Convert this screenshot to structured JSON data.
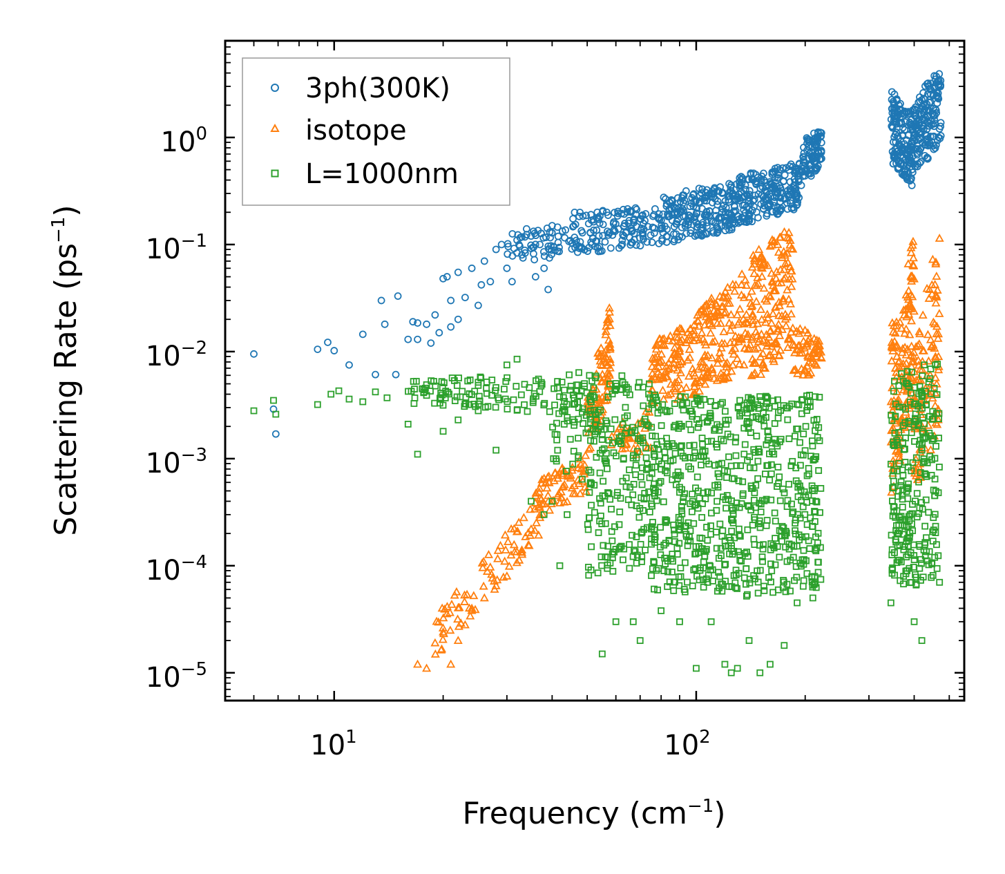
{
  "chart_data": {
    "type": "scatter",
    "xscale": "log",
    "yscale": "log",
    "xlim": [
      5,
      550
    ],
    "ylim": [
      5.5e-06,
      8
    ],
    "xlabel": "Frequency (cm",
    "xlabel_exp": "−1",
    "xlabel_close": ")",
    "ylabel": "Scattering Rate (ps",
    "ylabel_exp": "−1",
    "ylabel_close": ")",
    "x_ticks": [
      {
        "value": 10,
        "base": "10",
        "exp": "1"
      },
      {
        "value": 100,
        "base": "10",
        "exp": "2"
      }
    ],
    "y_ticks": [
      {
        "value": 1,
        "base": "10",
        "exp": "0"
      },
      {
        "value": 0.1,
        "base": "10",
        "exp": "−1"
      },
      {
        "value": 0.01,
        "base": "10",
        "exp": "−2"
      },
      {
        "value": 0.001,
        "base": "10",
        "exp": "−3"
      },
      {
        "value": 0.0001,
        "base": "10",
        "exp": "−4"
      },
      {
        "value": 1e-05,
        "base": "10",
        "exp": "−5"
      }
    ],
    "legend_position": "top-left",
    "series": [
      {
        "name": "3ph(300K)",
        "marker": "circle",
        "color": "#1f77b4",
        "points": [
          [
            6,
            0.0095
          ],
          [
            6.8,
            0.0029
          ],
          [
            6.9,
            0.0017
          ],
          [
            9,
            0.0105
          ],
          [
            9.6,
            0.0122
          ],
          [
            10,
            0.0102
          ],
          [
            11,
            0.0075
          ],
          [
            12,
            0.0145
          ],
          [
            13,
            0.0061
          ],
          [
            13.5,
            0.03
          ],
          [
            13.8,
            0.018
          ],
          [
            14.8,
            0.0061
          ],
          [
            15,
            0.033
          ],
          [
            16,
            0.013
          ],
          [
            16.5,
            0.019
          ],
          [
            17,
            0.0185
          ],
          [
            17,
            0.013
          ],
          [
            18,
            0.018
          ],
          [
            18.5,
            0.012
          ],
          [
            19,
            0.022
          ],
          [
            19.5,
            0.015
          ],
          [
            20,
            0.048
          ],
          [
            20.5,
            0.05
          ],
          [
            21,
            0.03
          ],
          [
            21,
            0.017
          ],
          [
            22,
            0.02
          ],
          [
            22,
            0.055
          ],
          [
            23,
            0.032
          ],
          [
            24,
            0.06
          ],
          [
            25,
            0.027
          ],
          [
            25.5,
            0.042
          ],
          [
            26,
            0.07
          ],
          [
            27,
            0.045
          ],
          [
            28,
            0.09
          ],
          [
            29,
            0.1
          ],
          [
            30,
            0.06
          ],
          [
            31,
            0.045
          ],
          [
            32,
            0.11
          ],
          [
            33,
            0.08
          ],
          [
            34,
            0.14
          ],
          [
            35,
            0.12
          ],
          [
            36,
            0.05
          ],
          [
            37,
            0.1
          ],
          [
            38,
            0.06
          ],
          [
            39,
            0.038
          ],
          [
            40,
            0.15
          ]
        ],
        "bands": [
          {
            "x": [
              30,
              45
            ],
            "ylo": [
              0.065,
              0.08
            ],
            "yhi": [
              0.13,
              0.15
            ],
            "density": 60
          },
          {
            "x": [
              45,
              80
            ],
            "ylo": [
              0.08,
              0.1
            ],
            "yhi": [
              0.2,
              0.23
            ],
            "density": 150
          },
          {
            "x": [
              80,
              130
            ],
            "ylo": [
              0.1,
              0.14
            ],
            "yhi": [
              0.3,
              0.38
            ],
            "density": 220
          },
          {
            "x": [
              130,
              195
            ],
            "ylo": [
              0.15,
              0.22
            ],
            "yhi": [
              0.45,
              0.6
            ],
            "density": 220
          },
          {
            "x": [
              195,
              222
            ],
            "ylo": [
              0.35,
              0.55
            ],
            "yhi": [
              0.9,
              1.3
            ],
            "density": 90
          },
          {
            "x": [
              345,
              395
            ],
            "ylo": [
              0.6,
              0.35
            ],
            "yhi": [
              2.8,
              1.6
            ],
            "density": 150
          },
          {
            "x": [
              395,
              475
            ],
            "ylo": [
              0.4,
              0.9
            ],
            "yhi": [
              2.2,
              4.5
            ],
            "density": 170
          }
        ]
      },
      {
        "name": "isotope",
        "marker": "triangle",
        "color": "#ff7f0e",
        "points": [
          [
            17,
            1.2e-05
          ],
          [
            18,
            1.1e-05
          ],
          [
            19,
            1.9e-05
          ],
          [
            20,
            2.4e-05
          ],
          [
            21,
            1.2e-05
          ],
          [
            22,
            2e-05
          ],
          [
            23,
            2.8e-05
          ],
          [
            24,
            4e-05
          ],
          [
            26,
            5e-05
          ],
          [
            28,
            6.5e-05
          ],
          [
            30,
            8e-05
          ],
          [
            33,
            0.00014
          ],
          [
            35,
            0.00022
          ],
          [
            36,
            0.00045
          ],
          [
            37,
            0.00035
          ],
          [
            40,
            0.0004
          ],
          [
            43,
            0.00055
          ],
          [
            45,
            0.0007
          ]
        ],
        "bands": [
          {
            "x": [
              19,
              37
            ],
            "ylo": [
              1.4e-05,
              0.00018
            ],
            "yhi": [
              3.5e-05,
              0.00045
            ],
            "density": 80
          },
          {
            "x": [
              36,
              50
            ],
            "ylo": [
              0.00025,
              0.0005
            ],
            "yhi": [
              0.0006,
              0.0011
            ],
            "density": 70
          },
          {
            "x": [
              50,
              58
            ],
            "ylo": [
              0.0009,
              0.004
            ],
            "yhi": [
              0.004,
              0.03
            ],
            "density": 90
          },
          {
            "x": [
              58,
              75
            ],
            "ylo": [
              0.0009,
              0.0012
            ],
            "yhi": [
              0.002,
              0.003
            ],
            "density": 40
          },
          {
            "x": [
              75,
              100
            ],
            "ylo": [
              0.003,
              0.004
            ],
            "yhi": [
              0.012,
              0.02
            ],
            "density": 120
          },
          {
            "x": [
              100,
              140
            ],
            "ylo": [
              0.004,
              0.007
            ],
            "yhi": [
              0.025,
              0.06
            ],
            "density": 150
          },
          {
            "x": [
              140,
              185
            ],
            "ylo": [
              0.005,
              0.01
            ],
            "yhi": [
              0.08,
              0.15
            ],
            "density": 170
          },
          {
            "x": [
              185,
              222
            ],
            "ylo": [
              0.004,
              0.008
            ],
            "yhi": [
              0.02,
              0.012
            ],
            "density": 60
          },
          {
            "x": [
              345,
              380
            ],
            "ylo": [
              0.0003,
              0.002
            ],
            "yhi": [
              0.02,
              0.03
            ],
            "density": 90
          },
          {
            "x": [
              380,
              400
            ],
            "ylo": [
              0.002,
              0.003
            ],
            "yhi": [
              0.05,
              0.15
            ],
            "density": 70
          },
          {
            "x": [
              400,
              470
            ],
            "ylo": [
              0.0004,
              0.002
            ],
            "yhi": [
              0.01,
              0.15
            ],
            "density": 110
          }
        ]
      },
      {
        "name": "L=1000nm",
        "marker": "square",
        "color": "#2ca02c",
        "points": [
          [
            6,
            0.0028
          ],
          [
            6.8,
            0.0035
          ],
          [
            6.9,
            0.0026
          ],
          [
            9,
            0.0032
          ],
          [
            9.8,
            0.004
          ],
          [
            10.3,
            0.0043
          ],
          [
            11,
            0.0036
          ],
          [
            12,
            0.0034
          ],
          [
            13,
            0.0042
          ],
          [
            14,
            0.0037
          ],
          [
            16,
            0.0021
          ],
          [
            17,
            0.0011
          ],
          [
            18,
            0.0039
          ],
          [
            20,
            0.0018
          ],
          [
            22,
            0.0023
          ],
          [
            25,
            0.0028
          ],
          [
            28,
            0.0012
          ],
          [
            30,
            0.0075
          ],
          [
            32,
            0.0085
          ],
          [
            35,
            0.0004
          ],
          [
            38,
            0.0003
          ],
          [
            40,
            0.0004
          ],
          [
            42,
            0.0001
          ],
          [
            44,
            0.0003
          ],
          [
            55,
            1.5e-05
          ],
          [
            60,
            3e-05
          ],
          [
            67,
            3e-05
          ],
          [
            70,
            2e-05
          ],
          [
            80,
            3.8e-05
          ],
          [
            90,
            3e-05
          ],
          [
            100,
            1.1e-05
          ],
          [
            110,
            3e-05
          ],
          [
            120,
            1.2e-05
          ],
          [
            125,
            1e-05
          ],
          [
            130,
            1.1e-05
          ],
          [
            140,
            2e-05
          ],
          [
            150,
            1e-05
          ],
          [
            160,
            1.2e-05
          ],
          [
            175,
            1.8e-05
          ],
          [
            190,
            4.5e-05
          ],
          [
            210,
            5e-05
          ],
          [
            345,
            4.5e-05
          ],
          [
            400,
            3e-05
          ],
          [
            420,
            2e-05
          ],
          [
            470,
            7e-05
          ]
        ],
        "bands": [
          {
            "x": [
              16,
              50
            ],
            "ylo": [
              0.0033,
              0.0025
            ],
            "yhi": [
              0.0055,
              0.0065
            ],
            "density": 120
          },
          {
            "x": [
              40,
              55
            ],
            "ylo": [
              0.0009,
              0.0004
            ],
            "yhi": [
              0.005,
              0.006
            ],
            "density": 60
          },
          {
            "x": [
              50,
              75
            ],
            "ylo": [
              8e-05,
              0.0001
            ],
            "yhi": [
              0.006,
              0.006
            ],
            "density": 200
          },
          {
            "x": [
              75,
              130
            ],
            "ylo": [
              6e-05,
              5e-05
            ],
            "yhi": [
              0.004,
              0.0035
            ],
            "density": 360
          },
          {
            "x": [
              130,
              222
            ],
            "ylo": [
              5e-05,
              6e-05
            ],
            "yhi": [
              0.004,
              0.004
            ],
            "density": 330
          },
          {
            "x": [
              345,
              470
            ],
            "ylo": [
              5e-05,
              8e-05
            ],
            "yhi": [
              0.006,
              0.009
            ],
            "density": 260
          }
        ]
      }
    ]
  }
}
